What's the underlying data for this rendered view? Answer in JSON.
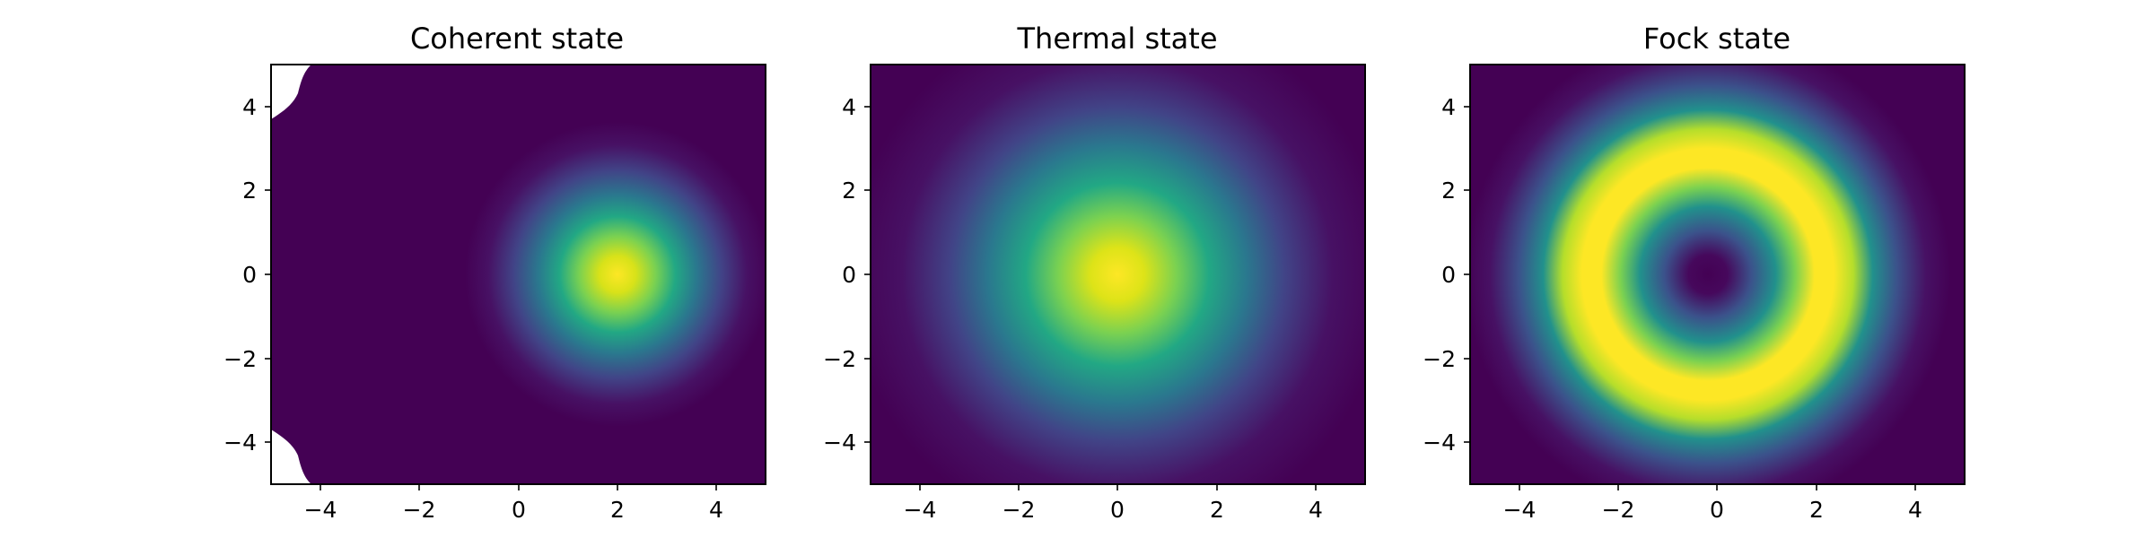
{
  "chart_data": [
    {
      "type": "heatmap",
      "title": "Coherent state",
      "state": "coherent",
      "center": [
        2,
        0
      ],
      "xlim": [
        -5,
        5
      ],
      "ylim": [
        -5,
        5
      ],
      "xticks": [
        -4,
        -2,
        0,
        2,
        4
      ],
      "yticks": [
        -4,
        -2,
        0,
        2,
        4
      ],
      "xtick_labels": [
        "−4",
        "−2",
        "0",
        "2",
        "4"
      ],
      "ytick_labels": [
        "−4",
        "−2",
        "0",
        "2",
        "4"
      ],
      "colormap": "viridis",
      "white_corners": true
    },
    {
      "type": "heatmap",
      "title": "Thermal state",
      "state": "thermal",
      "center": [
        0,
        0
      ],
      "xlim": [
        -5,
        5
      ],
      "ylim": [
        -5,
        5
      ],
      "xticks": [
        -4,
        -2,
        0,
        2,
        4
      ],
      "yticks": [
        -4,
        -2,
        0,
        2,
        4
      ],
      "xtick_labels": [
        "−4",
        "−2",
        "0",
        "2",
        "4"
      ],
      "ytick_labels": [
        "−4",
        "−2",
        "0",
        "2",
        "4"
      ],
      "colormap": "viridis"
    },
    {
      "type": "heatmap",
      "title": "Fock state",
      "state": "fock",
      "center": [
        0,
        0
      ],
      "ring_radius": 2,
      "xlim": [
        -5,
        5
      ],
      "ylim": [
        -5,
        5
      ],
      "xticks": [
        -4,
        -2,
        0,
        2,
        4
      ],
      "yticks": [
        -4,
        -2,
        0,
        2,
        4
      ],
      "xtick_labels": [
        "−4",
        "−2",
        "0",
        "2",
        "4"
      ],
      "ytick_labels": [
        "−4",
        "−2",
        "0",
        "2",
        "4"
      ],
      "colormap": "viridis"
    }
  ],
  "colors": {
    "viridis_low": "#440154",
    "viridis_mid_low": "#3b528b",
    "viridis_mid": "#21918c",
    "viridis_mid_high": "#5ec962",
    "viridis_high": "#fde725"
  }
}
